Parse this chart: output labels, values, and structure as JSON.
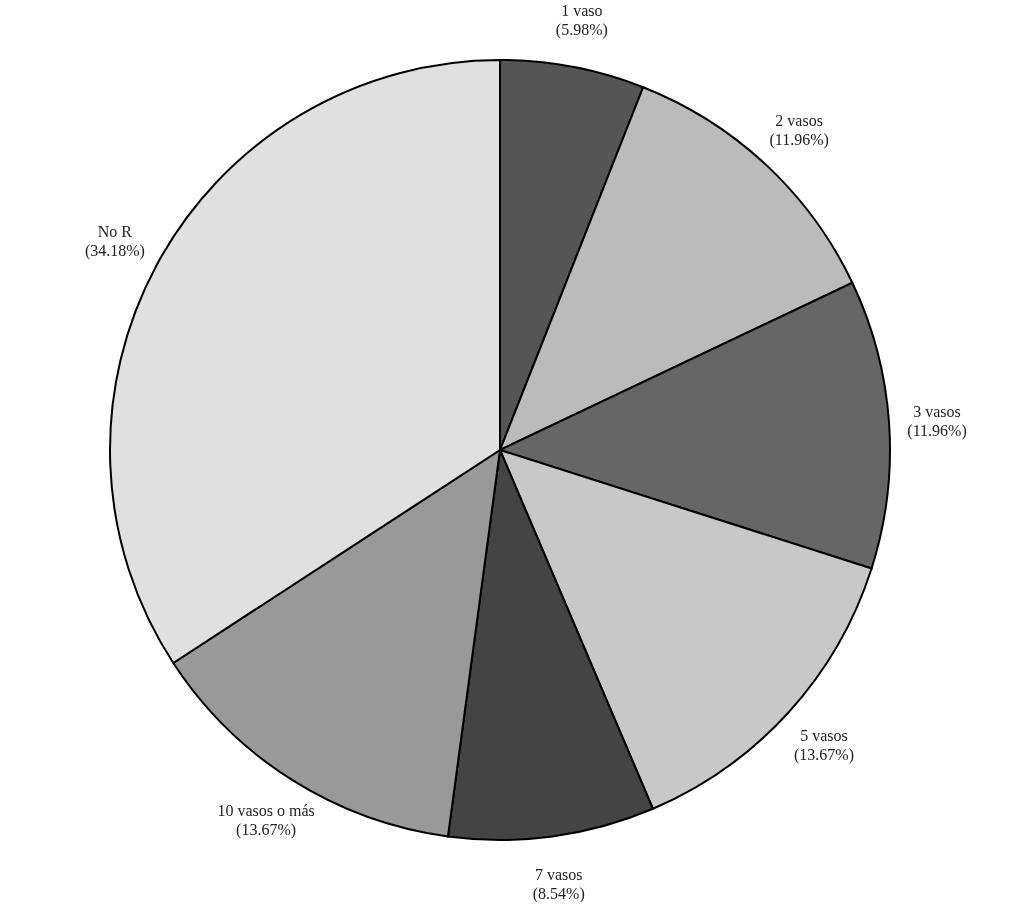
{
  "chart_data": {
    "type": "pie",
    "categories": [
      "1 vaso",
      "2 vasos",
      "3 vasos",
      "5 vasos",
      "7 vasos",
      "10 vasos o más",
      "No R"
    ],
    "values": [
      5.98,
      11.96,
      11.96,
      13.67,
      8.54,
      13.67,
      34.18
    ],
    "value_labels": [
      "(5.98%)",
      "(11.96%)",
      "(11.96%)",
      "(13.67%)",
      "(8.54%)",
      "(13.67%)",
      "(34.18%)"
    ],
    "colors": [
      "#555555",
      "#bbbbbb",
      "#666666",
      "#c8c8c8",
      "#444444",
      "#999999",
      "#e0e0e0"
    ],
    "legend": false
  }
}
